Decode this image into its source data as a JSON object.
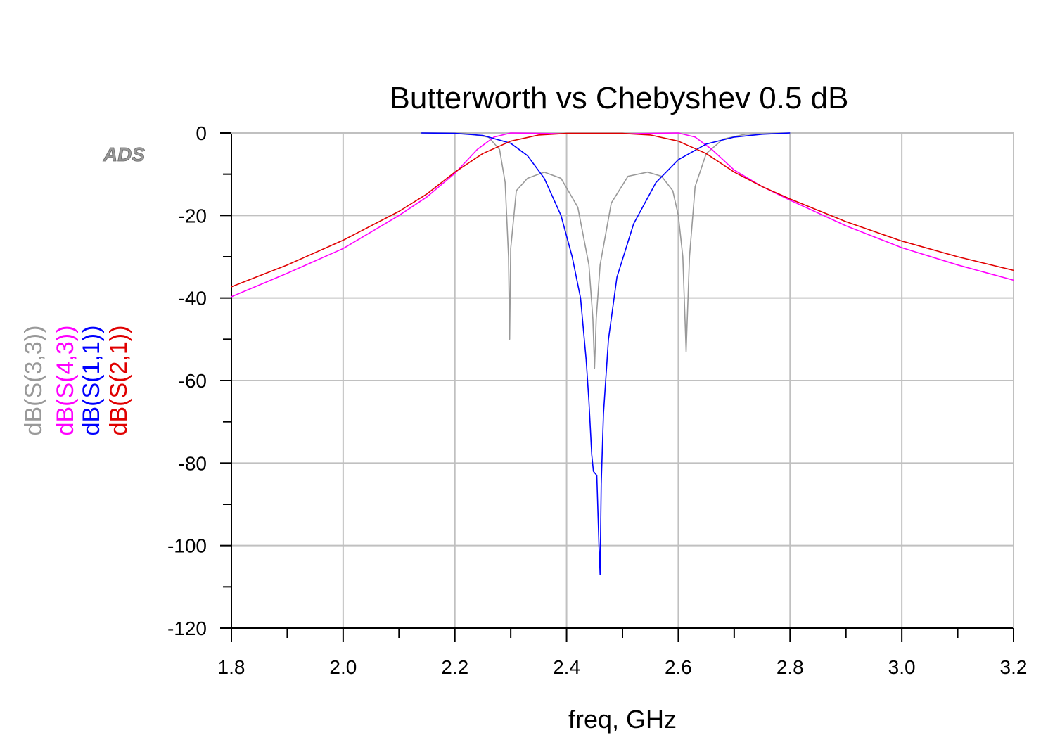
{
  "watermark": "ADS",
  "chart_data": {
    "type": "line",
    "title": "Butterworth vs Chebyshev 0.5 dB",
    "xlabel": "freq, GHz",
    "xlim": [
      1.8,
      3.2
    ],
    "ylim": [
      -120,
      0
    ],
    "grid": true,
    "x_ticks": [
      1.8,
      2.0,
      2.2,
      2.4,
      2.6,
      2.8,
      3.0,
      3.2
    ],
    "x_tick_labels": [
      "1.8",
      "2.0",
      "2.2",
      "2.4",
      "2.6",
      "2.8",
      "3.0",
      "3.2"
    ],
    "y_ticks": [
      0,
      -20,
      -40,
      -60,
      -80,
      -100,
      -120
    ],
    "y_tick_labels": [
      "0",
      "-20",
      "-40",
      "-60",
      "-80",
      "-100",
      "-120"
    ],
    "series": [
      {
        "name": "dB(S(3,3))",
        "color": "#999999",
        "points": [
          [
            2.14,
            0
          ],
          [
            2.22,
            -0.1
          ],
          [
            2.26,
            -1
          ],
          [
            2.28,
            -4
          ],
          [
            2.29,
            -12
          ],
          [
            2.296,
            -30
          ],
          [
            2.298,
            -50
          ],
          [
            2.3,
            -28
          ],
          [
            2.31,
            -14
          ],
          [
            2.33,
            -11
          ],
          [
            2.36,
            -9.5
          ],
          [
            2.39,
            -11
          ],
          [
            2.42,
            -18
          ],
          [
            2.44,
            -32
          ],
          [
            2.447,
            -45
          ],
          [
            2.45,
            -57
          ],
          [
            2.453,
            -45
          ],
          [
            2.46,
            -32
          ],
          [
            2.48,
            -17
          ],
          [
            2.51,
            -10.5
          ],
          [
            2.545,
            -9.5
          ],
          [
            2.57,
            -10.5
          ],
          [
            2.59,
            -14
          ],
          [
            2.6,
            -20
          ],
          [
            2.608,
            -30
          ],
          [
            2.614,
            -53
          ],
          [
            2.62,
            -30
          ],
          [
            2.63,
            -13
          ],
          [
            2.65,
            -5
          ],
          [
            2.68,
            -1.5
          ],
          [
            2.72,
            -0.3
          ],
          [
            2.8,
            0
          ]
        ]
      },
      {
        "name": "dB(S(4,3))",
        "color": "#ff00ff",
        "points": [
          [
            1.8,
            -39.7
          ],
          [
            1.9,
            -34
          ],
          [
            2.0,
            -28
          ],
          [
            2.1,
            -20
          ],
          [
            2.15,
            -15.5
          ],
          [
            2.2,
            -9.8
          ],
          [
            2.24,
            -4
          ],
          [
            2.27,
            -1
          ],
          [
            2.3,
            0
          ],
          [
            2.4,
            -0.2
          ],
          [
            2.5,
            -0.2
          ],
          [
            2.6,
            0
          ],
          [
            2.63,
            -1
          ],
          [
            2.66,
            -4
          ],
          [
            2.7,
            -9
          ],
          [
            2.75,
            -13
          ],
          [
            2.8,
            -16.3
          ],
          [
            2.9,
            -22.5
          ],
          [
            3.0,
            -27.8
          ],
          [
            3.1,
            -32
          ],
          [
            3.2,
            -35.7
          ]
        ]
      },
      {
        "name": "dB(S(1,1))",
        "color": "#0000ff",
        "points": [
          [
            2.14,
            0
          ],
          [
            2.2,
            -0.1
          ],
          [
            2.25,
            -0.6
          ],
          [
            2.3,
            -2.5
          ],
          [
            2.33,
            -5.5
          ],
          [
            2.36,
            -11
          ],
          [
            2.39,
            -20
          ],
          [
            2.41,
            -30
          ],
          [
            2.425,
            -40
          ],
          [
            2.435,
            -55
          ],
          [
            2.44,
            -65
          ],
          [
            2.445,
            -78
          ],
          [
            2.448,
            -82
          ],
          [
            2.454,
            -83
          ],
          [
            2.458,
            -100
          ],
          [
            2.46,
            -107
          ],
          [
            2.462,
            -85
          ],
          [
            2.466,
            -68
          ],
          [
            2.475,
            -50
          ],
          [
            2.49,
            -35
          ],
          [
            2.52,
            -22
          ],
          [
            2.56,
            -12
          ],
          [
            2.6,
            -6.5
          ],
          [
            2.65,
            -2.7
          ],
          [
            2.7,
            -1
          ],
          [
            2.75,
            -0.3
          ],
          [
            2.8,
            0
          ]
        ]
      },
      {
        "name": "dB(S(2,1))",
        "color": "#e00000",
        "points": [
          [
            1.8,
            -37.3
          ],
          [
            1.9,
            -32
          ],
          [
            2.0,
            -26
          ],
          [
            2.1,
            -19
          ],
          [
            2.15,
            -14.8
          ],
          [
            2.2,
            -9.5
          ],
          [
            2.25,
            -5
          ],
          [
            2.3,
            -2
          ],
          [
            2.35,
            -0.5
          ],
          [
            2.4,
            -0.1
          ],
          [
            2.5,
            -0.1
          ],
          [
            2.55,
            -0.5
          ],
          [
            2.6,
            -2
          ],
          [
            2.65,
            -5
          ],
          [
            2.7,
            -9.5
          ],
          [
            2.75,
            -13
          ],
          [
            2.8,
            -16
          ],
          [
            2.9,
            -21.5
          ],
          [
            3.0,
            -26.2
          ],
          [
            3.1,
            -30
          ],
          [
            3.2,
            -33.3
          ]
        ]
      }
    ]
  }
}
